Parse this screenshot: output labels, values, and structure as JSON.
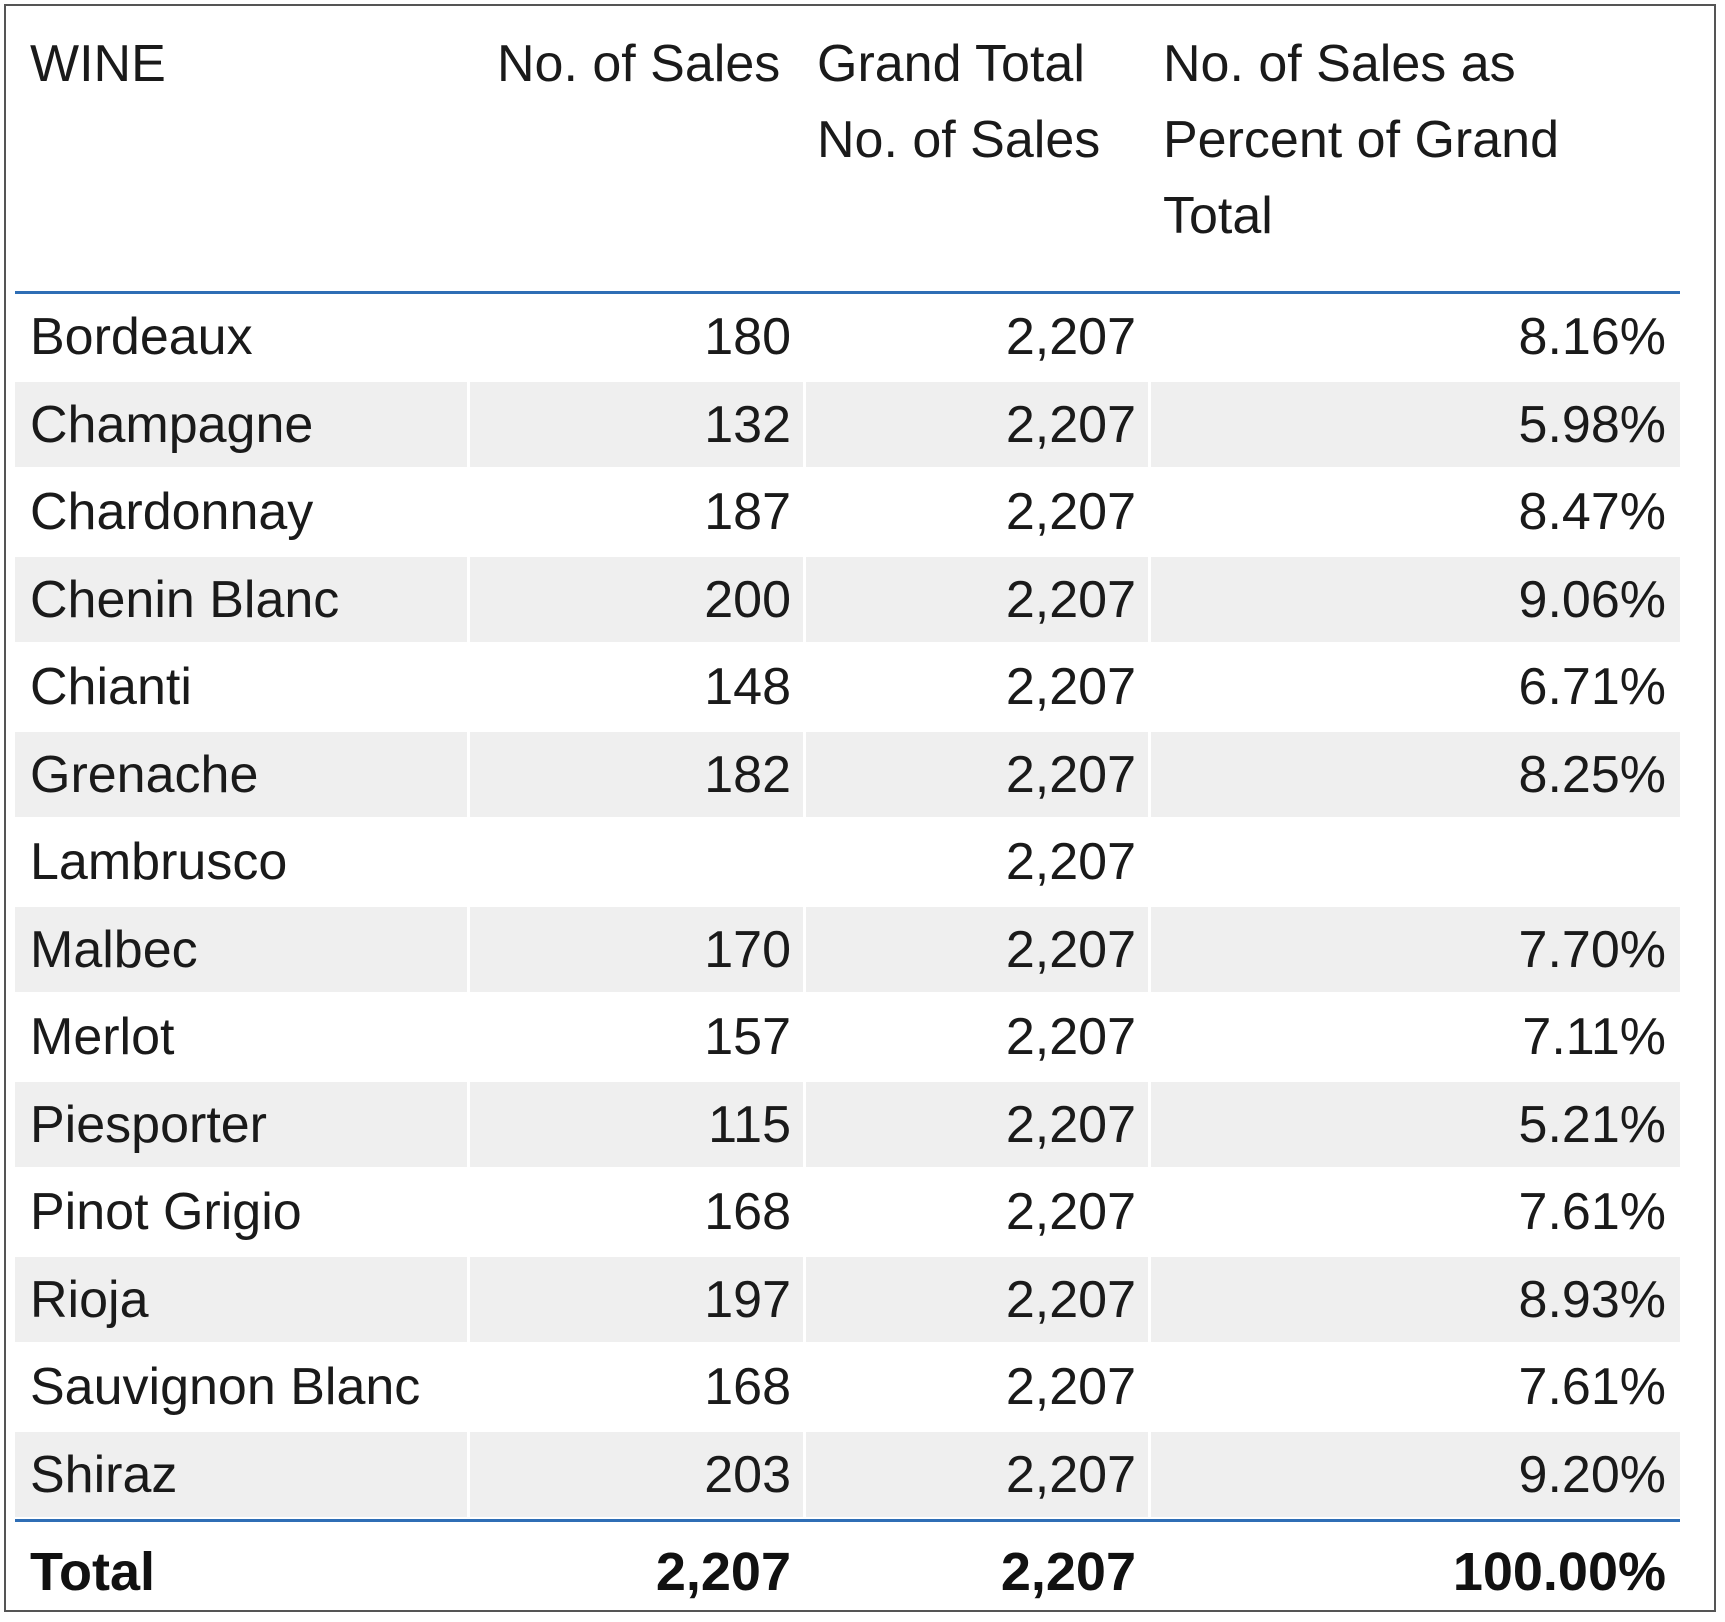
{
  "table": {
    "headers": [
      "WINE",
      "No. of Sales",
      "Grand Total No. of Sales",
      "No. of Sales as Percent of Grand Total"
    ],
    "rows": [
      {
        "wine": "Bordeaux",
        "sales": "180",
        "grand_total": "2,207",
        "percent": "8.16%"
      },
      {
        "wine": "Champagne",
        "sales": "132",
        "grand_total": "2,207",
        "percent": "5.98%"
      },
      {
        "wine": "Chardonnay",
        "sales": "187",
        "grand_total": "2,207",
        "percent": "8.47%"
      },
      {
        "wine": "Chenin Blanc",
        "sales": "200",
        "grand_total": "2,207",
        "percent": "9.06%"
      },
      {
        "wine": "Chianti",
        "sales": "148",
        "grand_total": "2,207",
        "percent": "6.71%"
      },
      {
        "wine": "Grenache",
        "sales": "182",
        "grand_total": "2,207",
        "percent": "8.25%"
      },
      {
        "wine": "Lambrusco",
        "sales": "",
        "grand_total": "2,207",
        "percent": ""
      },
      {
        "wine": "Malbec",
        "sales": "170",
        "grand_total": "2,207",
        "percent": "7.70%"
      },
      {
        "wine": "Merlot",
        "sales": "157",
        "grand_total": "2,207",
        "percent": "7.11%"
      },
      {
        "wine": "Piesporter",
        "sales": "115",
        "grand_total": "2,207",
        "percent": "5.21%"
      },
      {
        "wine": "Pinot Grigio",
        "sales": "168",
        "grand_total": "2,207",
        "percent": "7.61%"
      },
      {
        "wine": "Rioja",
        "sales": "197",
        "grand_total": "2,207",
        "percent": "8.93%"
      },
      {
        "wine": "Sauvignon Blanc",
        "sales": "168",
        "grand_total": "2,207",
        "percent": "7.61%"
      },
      {
        "wine": "Shiraz",
        "sales": "203",
        "grand_total": "2,207",
        "percent": "9.20%"
      }
    ],
    "total": {
      "label": "Total",
      "sales": "2,207",
      "grand_total": "2,207",
      "percent": "100.00%"
    }
  },
  "colors": {
    "header_rule": "#2f6eb5",
    "alt_row_bg": "#efefef",
    "frame_border": "#555555"
  }
}
